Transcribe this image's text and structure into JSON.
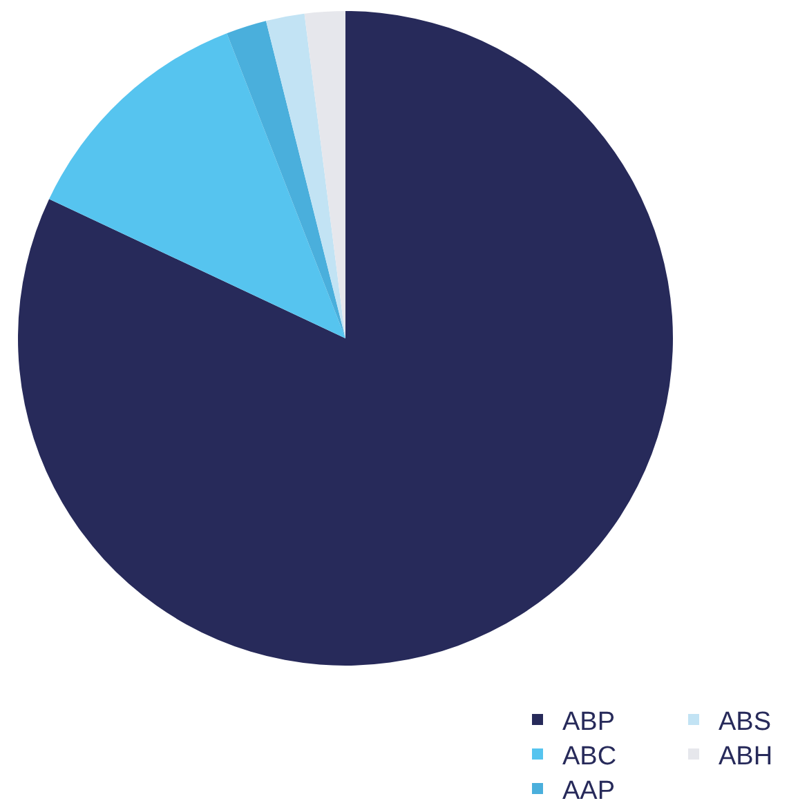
{
  "chart_data": {
    "type": "pie",
    "categories": [
      "ABP",
      "ABC",
      "AAP",
      "ABS",
      "ABH"
    ],
    "values": [
      82.0,
      12.1,
      2.0,
      1.9,
      2.0
    ],
    "colors": [
      "#272a5a",
      "#56c4ef",
      "#4aafdc",
      "#c2e3f4",
      "#e6e7ec"
    ],
    "legend": "bottom right"
  }
}
